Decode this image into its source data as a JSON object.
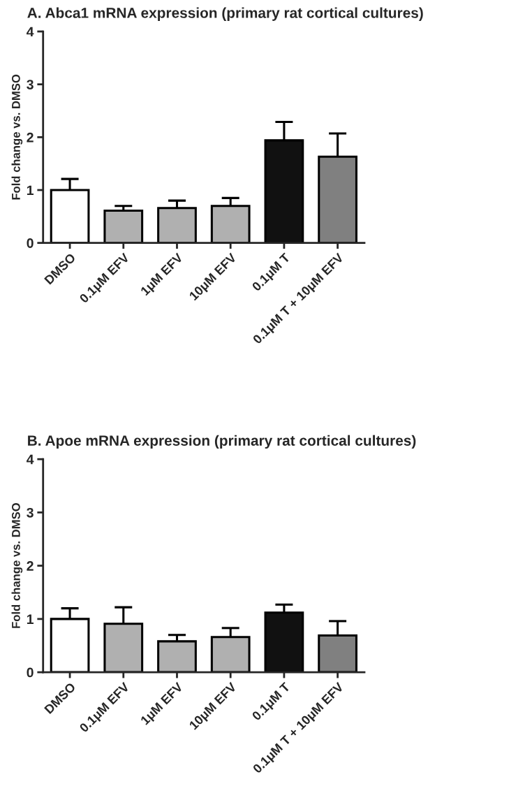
{
  "chart_data": [
    {
      "type": "bar",
      "title": "A. Abca1 mRNA expression (primary rat cortical cultures)",
      "ylabel": "Fold change vs. DMSO",
      "categories": [
        "DMSO",
        "0.1μM EFV",
        "1μM EFV",
        "10μM EFV",
        "0.1μM T",
        "0.1μM T + 10μM EFV"
      ],
      "values": [
        1.0,
        0.61,
        0.66,
        0.7,
        1.94,
        1.63
      ],
      "errors": [
        0.21,
        0.09,
        0.14,
        0.15,
        0.35,
        0.44
      ],
      "colors": [
        "#ffffff",
        "#b0b0b0",
        "#b0b0b0",
        "#b0b0b0",
        "#111111",
        "#808080"
      ],
      "ylim": [
        0,
        4
      ],
      "yticks": [
        0,
        1,
        2,
        3,
        4
      ],
      "grid": false,
      "legend": false
    },
    {
      "type": "bar",
      "title": "B. Apoe mRNA expression (primary rat cortical cultures)",
      "ylabel": "Fold change vs. DMSO",
      "categories": [
        "DMSO",
        "0.1μM EFV",
        "1μM EFV",
        "10μM EFV",
        "0.1μM T",
        "0.1μM T + 10μM EFV"
      ],
      "values": [
        1.0,
        0.91,
        0.58,
        0.66,
        1.12,
        0.69
      ],
      "errors": [
        0.2,
        0.31,
        0.12,
        0.17,
        0.15,
        0.27
      ],
      "colors": [
        "#ffffff",
        "#b0b0b0",
        "#b0b0b0",
        "#b0b0b0",
        "#111111",
        "#808080"
      ],
      "ylim": [
        0,
        4
      ],
      "yticks": [
        0,
        1,
        2,
        3,
        4
      ],
      "grid": false,
      "legend": false
    }
  ]
}
